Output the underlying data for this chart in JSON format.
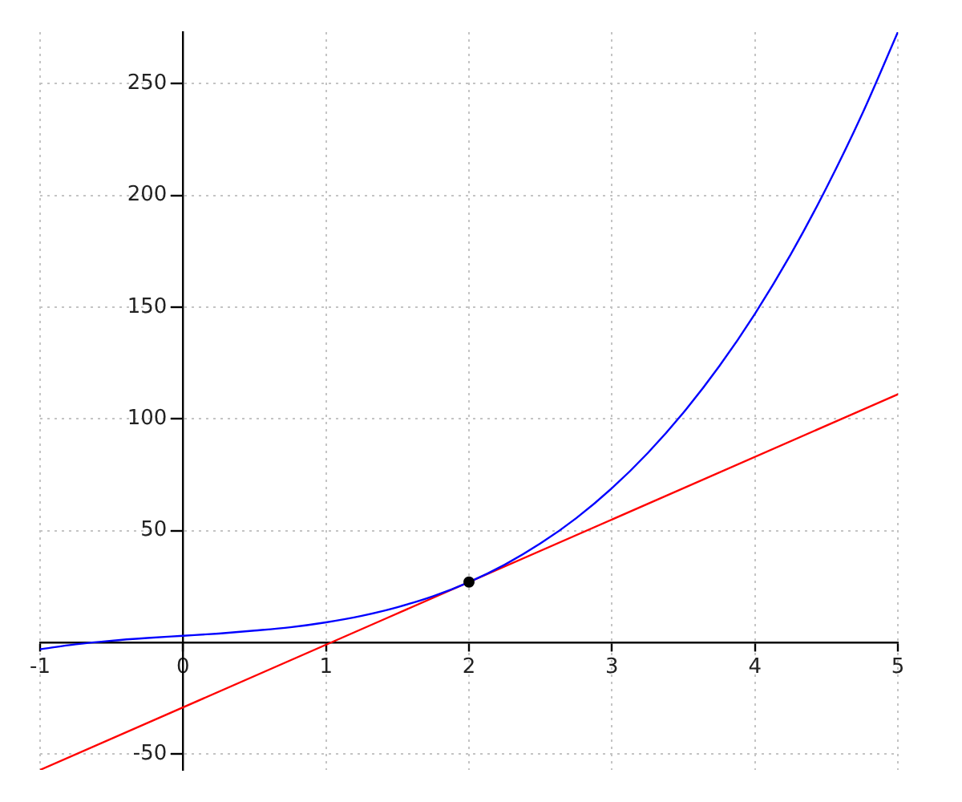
{
  "chart_data": {
    "type": "line",
    "xlim": [
      -1,
      5
    ],
    "ylim": [
      -57,
      273
    ],
    "xticks": [
      -1,
      0,
      1,
      2,
      3,
      4,
      5
    ],
    "yticks": [
      -50,
      50,
      100,
      150,
      200,
      250
    ],
    "grid": true,
    "marker": "none",
    "series": [
      {
        "color": "#0000ff",
        "x": [
          -1,
          -0.75,
          -0.5,
          -0.25,
          0,
          0.25,
          0.5,
          0.75,
          1,
          1.25,
          1.5,
          1.75,
          2,
          2.25,
          2.5,
          2.75,
          3,
          3.25,
          3.5,
          3.75,
          4,
          4.25,
          4.5,
          4.75,
          5
        ],
        "values": [
          -3,
          -0.8,
          0.8,
          2,
          3,
          4,
          5.3,
          6.8,
          9,
          11.9,
          15.8,
          20.7,
          27,
          34.8,
          44.3,
          55.6,
          69,
          84.7,
          102.8,
          123.5,
          147,
          173.5,
          203.3,
          236.3,
          273
        ]
      },
      {
        "color": "#ff0000",
        "x": [
          -1,
          5
        ],
        "values": [
          -57,
          111
        ]
      },
      {
        "type": "scatter",
        "color": "#000000",
        "x": [
          2
        ],
        "values": [
          27
        ],
        "marker": "circle"
      }
    ]
  }
}
